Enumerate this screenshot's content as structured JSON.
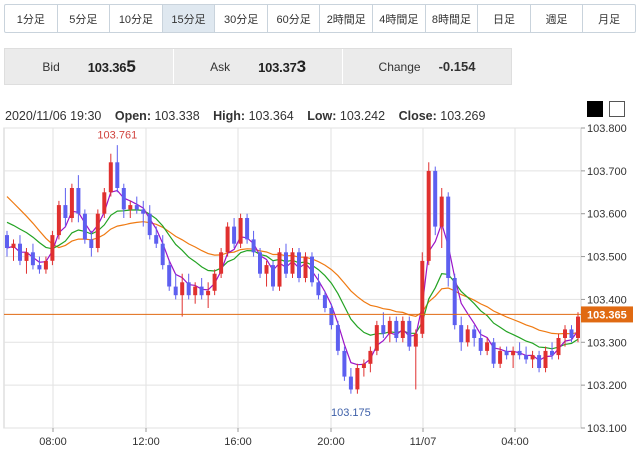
{
  "timeframes": [
    {
      "label": "1分足"
    },
    {
      "label": "5分足"
    },
    {
      "label": "10分足"
    },
    {
      "label": "15分足",
      "active": true
    },
    {
      "label": "30分足"
    },
    {
      "label": "60分足"
    },
    {
      "label": "2時間足"
    },
    {
      "label": "4時間足"
    },
    {
      "label": "8時間足"
    },
    {
      "label": "日足"
    },
    {
      "label": "週足"
    },
    {
      "label": "月足"
    }
  ],
  "quote": {
    "bid_label": "Bid",
    "bid_main": "103.36",
    "bid_big": "5",
    "ask_label": "Ask",
    "ask_main": "103.37",
    "ask_big": "3",
    "change_label": "Change",
    "change_value": "-0.154"
  },
  "ohlc": {
    "datetime": "2020/11/06 19:30",
    "open_label": "Open:",
    "open": "103.338",
    "high_label": "High:",
    "high": "103.364",
    "low_label": "Low:",
    "low": "103.242",
    "close_label": "Close:",
    "close": "103.269"
  },
  "theme_options": [
    "dark",
    "light"
  ],
  "colors": {
    "up": "#e0302f",
    "down": "#5d5ff0",
    "ma_fast": "#9b14c8",
    "ma_mid": "#23a323",
    "ma_slow": "#ef7a12",
    "price_line": "#e06a12",
    "grid": "#e2e2e2"
  },
  "chart_data": {
    "type": "candlestick",
    "title": "",
    "y_range": [
      103.1,
      103.8
    ],
    "y_ticks": [
      "103.800",
      "103.700",
      "103.600",
      "103.500",
      "103.400",
      "103.300",
      "103.200",
      "103.100"
    ],
    "x_ticks": [
      "08:00",
      "12:00",
      "16:00",
      "20:00",
      "11/07",
      "04:00"
    ],
    "current_price": "103.365",
    "annotations": {
      "high": "103.761",
      "low": "103.175"
    },
    "candles": [
      [
        103.55,
        103.56,
        103.5,
        103.52
      ],
      [
        103.52,
        103.54,
        103.49,
        103.53
      ],
      [
        103.53,
        103.55,
        103.48,
        103.49
      ],
      [
        103.49,
        103.52,
        103.46,
        103.51
      ],
      [
        103.51,
        103.53,
        103.47,
        103.48
      ],
      [
        103.48,
        103.5,
        103.46,
        103.47
      ],
      [
        103.47,
        103.5,
        103.46,
        103.49
      ],
      [
        103.49,
        103.56,
        103.48,
        103.55
      ],
      [
        103.55,
        103.63,
        103.54,
        103.62
      ],
      [
        103.62,
        103.66,
        103.57,
        103.59
      ],
      [
        103.59,
        103.67,
        103.58,
        103.66
      ],
      [
        103.66,
        103.69,
        103.58,
        103.6
      ],
      [
        103.6,
        103.61,
        103.53,
        103.54
      ],
      [
        103.54,
        103.56,
        103.5,
        103.52
      ],
      [
        103.52,
        103.61,
        103.51,
        103.6
      ],
      [
        103.6,
        103.66,
        103.59,
        103.65
      ],
      [
        103.65,
        103.74,
        103.64,
        103.72
      ],
      [
        103.72,
        103.76,
        103.65,
        103.66
      ],
      [
        103.66,
        103.67,
        103.59,
        103.61
      ],
      [
        103.61,
        103.63,
        103.59,
        103.62
      ],
      [
        103.62,
        103.64,
        103.6,
        103.61
      ],
      [
        103.61,
        103.63,
        103.57,
        103.6
      ],
      [
        103.6,
        103.62,
        103.54,
        103.55
      ],
      [
        103.55,
        103.57,
        103.52,
        103.53
      ],
      [
        103.53,
        103.55,
        103.47,
        103.48
      ],
      [
        103.48,
        103.49,
        103.42,
        103.43
      ],
      [
        103.43,
        103.46,
        103.4,
        103.41
      ],
      [
        103.41,
        103.46,
        103.36,
        103.44
      ],
      [
        103.44,
        103.46,
        103.4,
        103.41
      ],
      [
        103.41,
        103.44,
        103.39,
        103.43
      ],
      [
        103.43,
        103.45,
        103.4,
        103.41
      ],
      [
        103.41,
        103.44,
        103.38,
        103.42
      ],
      [
        103.42,
        103.47,
        103.41,
        103.46
      ],
      [
        103.46,
        103.52,
        103.45,
        103.51
      ],
      [
        103.51,
        103.58,
        103.5,
        103.57
      ],
      [
        103.57,
        103.59,
        103.52,
        103.53
      ],
      [
        103.53,
        103.6,
        103.52,
        103.59
      ],
      [
        103.59,
        103.6,
        103.53,
        103.54
      ],
      [
        103.54,
        103.56,
        103.5,
        103.51
      ],
      [
        103.51,
        103.52,
        103.45,
        103.46
      ],
      [
        103.46,
        103.49,
        103.43,
        103.48
      ],
      [
        103.48,
        103.49,
        103.42,
        103.43
      ],
      [
        103.43,
        103.52,
        103.42,
        103.51
      ],
      [
        103.51,
        103.53,
        103.45,
        103.46
      ],
      [
        103.46,
        103.52,
        103.45,
        103.51
      ],
      [
        103.51,
        103.52,
        103.44,
        103.45
      ],
      [
        103.45,
        103.51,
        103.44,
        103.5
      ],
      [
        103.5,
        103.51,
        103.43,
        103.44
      ],
      [
        103.44,
        103.46,
        103.4,
        103.41
      ],
      [
        103.41,
        103.42,
        103.37,
        103.38
      ],
      [
        103.38,
        103.39,
        103.33,
        103.34
      ],
      [
        103.34,
        103.35,
        103.27,
        103.28
      ],
      [
        103.28,
        103.29,
        103.21,
        103.22
      ],
      [
        103.22,
        103.24,
        103.18,
        103.19
      ],
      [
        103.19,
        103.25,
        103.18,
        103.24
      ],
      [
        103.24,
        103.26,
        103.22,
        103.25
      ],
      [
        103.25,
        103.29,
        103.23,
        103.28
      ],
      [
        103.28,
        103.35,
        103.27,
        103.34
      ],
      [
        103.34,
        103.37,
        103.31,
        103.32
      ],
      [
        103.32,
        103.36,
        103.3,
        103.35
      ],
      [
        103.35,
        103.36,
        103.3,
        103.31
      ],
      [
        103.31,
        103.36,
        103.3,
        103.35
      ],
      [
        103.35,
        103.36,
        103.28,
        103.29
      ],
      [
        103.29,
        103.33,
        103.19,
        103.32
      ],
      [
        103.32,
        103.51,
        103.31,
        103.49
      ],
      [
        103.49,
        103.72,
        103.48,
        103.7
      ],
      [
        103.7,
        103.71,
        103.55,
        103.57
      ],
      [
        103.57,
        103.66,
        103.52,
        103.64
      ],
      [
        103.64,
        103.65,
        103.43,
        103.45
      ],
      [
        103.45,
        103.46,
        103.33,
        103.34
      ],
      [
        103.34,
        103.36,
        103.28,
        103.3
      ],
      [
        103.3,
        103.34,
        103.29,
        103.33
      ],
      [
        103.33,
        103.34,
        103.29,
        103.31
      ],
      [
        103.31,
        103.33,
        103.27,
        103.28
      ],
      [
        103.28,
        103.31,
        103.27,
        103.3
      ],
      [
        103.3,
        103.31,
        103.24,
        103.25
      ],
      [
        103.25,
        103.29,
        103.24,
        103.28
      ],
      [
        103.28,
        103.29,
        103.26,
        103.27
      ],
      [
        103.27,
        103.29,
        103.24,
        103.28
      ],
      [
        103.28,
        103.3,
        103.26,
        103.27
      ],
      [
        103.27,
        103.29,
        103.25,
        103.26
      ],
      [
        103.26,
        103.28,
        103.24,
        103.27
      ],
      [
        103.27,
        103.28,
        103.23,
        103.24
      ],
      [
        103.24,
        103.29,
        103.23,
        103.28
      ],
      [
        103.28,
        103.3,
        103.26,
        103.27
      ],
      [
        103.27,
        103.32,
        103.26,
        103.31
      ],
      [
        103.31,
        103.34,
        103.29,
        103.33
      ],
      [
        103.33,
        103.34,
        103.3,
        103.31
      ],
      [
        103.31,
        103.37,
        103.3,
        103.36
      ]
    ]
  }
}
